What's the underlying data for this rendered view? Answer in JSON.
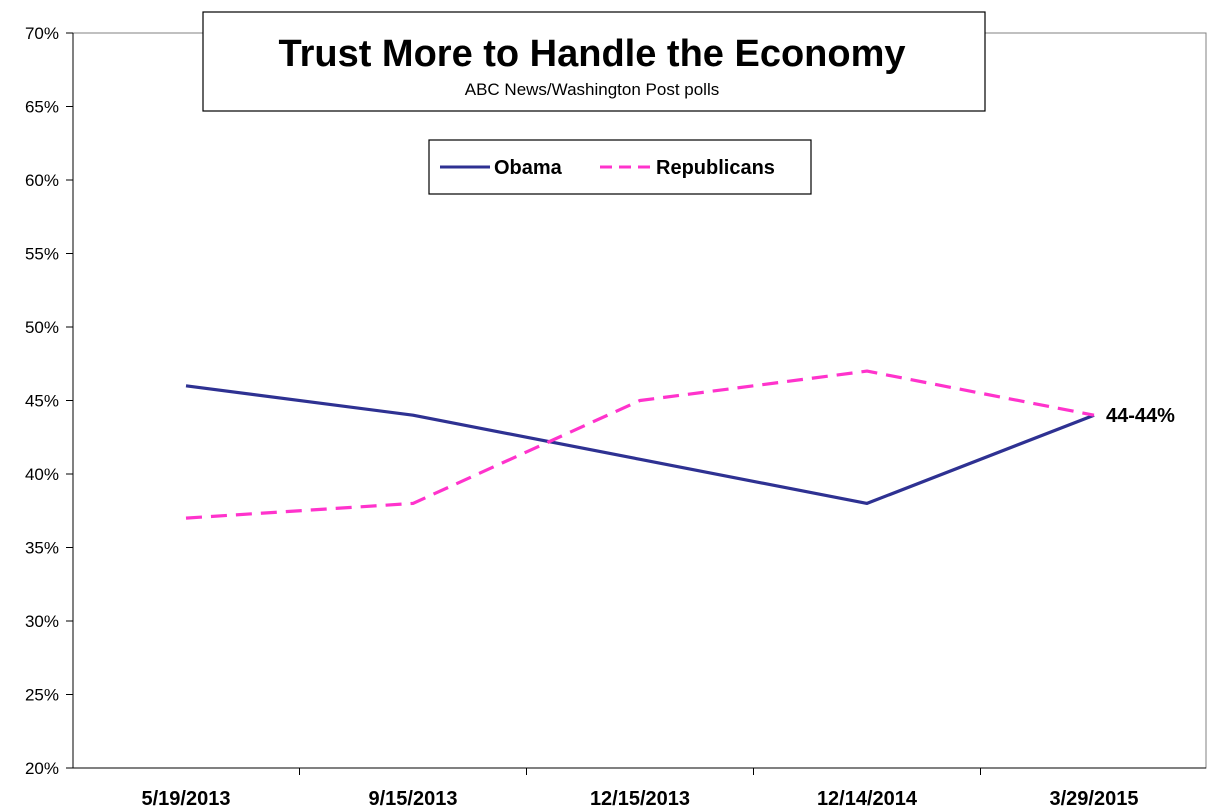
{
  "chart_data": {
    "type": "line",
    "title": "Trust More to Handle the Economy",
    "subtitle": "ABC News/Washington  Post polls",
    "xlabel": "",
    "ylabel": "",
    "categories": [
      "5/19/2013",
      "9/15/2013",
      "12/15/2013",
      "12/14/2014",
      "3/29/2015"
    ],
    "ylim": [
      20,
      70
    ],
    "y_ticks": [
      20,
      25,
      30,
      35,
      40,
      45,
      50,
      55,
      60,
      65,
      70
    ],
    "y_tick_format": "percent",
    "grid": false,
    "legend_position": "top-center",
    "series": [
      {
        "name": "Obama",
        "values": [
          46,
          44,
          41,
          38,
          44
        ],
        "color": "#2E3192",
        "style": "solid"
      },
      {
        "name": "Republicans",
        "values": [
          37,
          38,
          45,
          47,
          44
        ],
        "color": "#FF33CC",
        "style": "dashed"
      }
    ],
    "annotations": [
      {
        "text": "44-44%",
        "category_index": 4,
        "value": 44
      }
    ]
  }
}
